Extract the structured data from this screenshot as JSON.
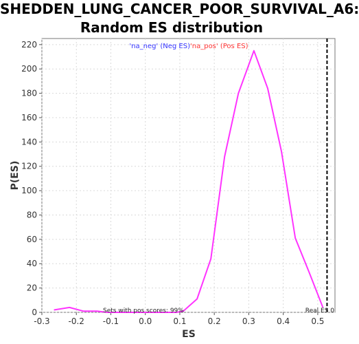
{
  "chart_data": {
    "type": "line",
    "title_line1": "SHEDDEN_LUNG_CANCER_POOR_SURVIVAL_A6:",
    "title_line2": "Random ES distribution",
    "xlabel": "ES",
    "ylabel": "P(ES)",
    "xlim": [
      -0.3,
      0.55
    ],
    "ylim": [
      0,
      225
    ],
    "x_ticks": [
      -0.3,
      -0.2,
      -0.1,
      0.0,
      0.1,
      0.2,
      0.3,
      0.4,
      0.5
    ],
    "x_tick_labels": [
      "-0.3",
      "-0.2",
      "-0.1",
      "0.0",
      "0.1",
      "0.2",
      "0.3",
      "0.4",
      "0.5"
    ],
    "y_ticks": [
      0,
      20,
      40,
      60,
      80,
      100,
      120,
      140,
      160,
      180,
      200,
      220
    ],
    "y_tick_labels": [
      "0",
      "20",
      "40",
      "60",
      "80",
      "100",
      "120",
      "140",
      "160",
      "180",
      "200",
      "220"
    ],
    "grid": true,
    "series": [
      {
        "color": "#ff33ff",
        "x": [
          -0.265,
          -0.22,
          -0.18,
          -0.14,
          -0.11,
          -0.07,
          -0.03,
          0.01,
          0.05,
          0.09,
          0.11,
          0.15,
          0.19,
          0.23,
          0.27,
          0.315,
          0.355,
          0.395,
          0.435,
          0.475,
          0.515
        ],
        "y": [
          2,
          4,
          1,
          1,
          0,
          0,
          0,
          0,
          0,
          0,
          1,
          11,
          44,
          128,
          180,
          215,
          184,
          132,
          61,
          33,
          4
        ]
      }
    ],
    "legend": {
      "placement": "top-center",
      "neg_label": "'na_neg' (Neg ES)",
      "neg_color": "#3333ff",
      "pos_label": "'na_pos' (Pos ES)",
      "pos_color": "#ff3333"
    },
    "real_es": {
      "x": 0.527,
      "label": "Real ES 0"
    },
    "annotation": "Sets with pos scores: 99%"
  }
}
